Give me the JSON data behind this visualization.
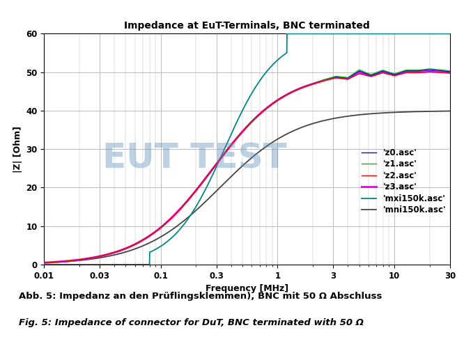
{
  "title": "Impedance at EuT-Terminals, BNC terminated",
  "xlabel": "Frequency [MHz]",
  "ylabel": "|Z| [Ohm]",
  "xlim": [
    0.01,
    30
  ],
  "ylim": [
    0,
    60
  ],
  "yticks": [
    0,
    10,
    20,
    30,
    40,
    50,
    60
  ],
  "caption_line1": "Abb. 5: Impedanz an den Prüflingsklemmen), BNC mit 50 Ω Abschluss",
  "caption_line2": "Fig. 5: Impedance of connector for DuT, BNC terminated with 50 Ω",
  "watermark": "EUT TEST",
  "watermark_color": "#5b8db8",
  "watermark_alpha": 0.4,
  "legend_entries": [
    {
      "label": "'z0.asc'",
      "color": "#0000ff",
      "lw": 1.0
    },
    {
      "label": "'z1.asc'",
      "color": "#00bb00",
      "lw": 1.0
    },
    {
      "label": "'z2.asc'",
      "color": "#ff0000",
      "lw": 1.0
    },
    {
      "label": "'z3.asc'",
      "color": "#ff00ff",
      "lw": 2.2
    },
    {
      "label": "'mxi150k.asc'",
      "color": "#008888",
      "lw": 1.3
    },
    {
      "label": "'mni150k.asc'",
      "color": "#444444",
      "lw": 1.3
    }
  ],
  "background_color": "#ffffff",
  "grid_color": "#bbbbbb"
}
